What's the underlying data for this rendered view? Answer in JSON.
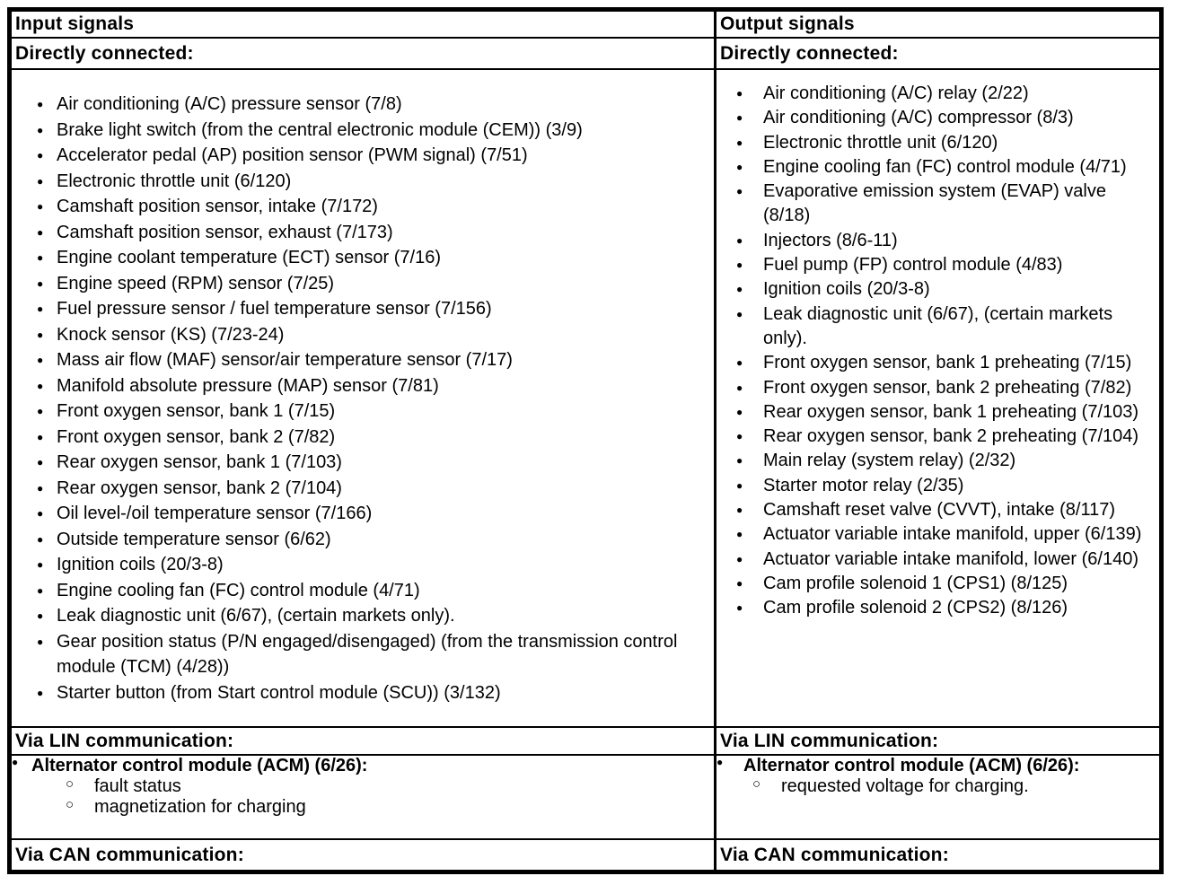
{
  "icons": {
    "bullet": "●",
    "circle": "○"
  },
  "columns": [
    {
      "header": "Input signals",
      "directly_connected": {
        "label": "Directly connected:",
        "items": [
          "Air conditioning (A/C) pressure sensor (7/8)",
          "Brake light switch (from the central electronic module (CEM)) (3/9)",
          "Accelerator pedal (AP) position sensor (PWM signal) (7/51)",
          "Electronic throttle unit (6/120)",
          "Camshaft position sensor, intake (7/172)",
          "Camshaft position sensor, exhaust (7/173)",
          "Engine coolant temperature (ECT) sensor (7/16)",
          "Engine speed (RPM) sensor (7/25)",
          "Fuel pressure sensor / fuel temperature sensor (7/156)",
          "Knock sensor (KS) (7/23-24)",
          "Mass air flow (MAF) sensor/air temperature sensor (7/17)",
          "Manifold absolute pressure (MAP) sensor (7/81)",
          "Front oxygen sensor, bank 1 (7/15)",
          "Front oxygen sensor, bank 2 (7/82)",
          "Rear oxygen sensor, bank 1 (7/103)",
          "Rear oxygen sensor, bank 2 (7/104)",
          "Oil level-/oil temperature sensor (7/166)",
          "Outside temperature sensor (6/62)",
          "Ignition coils (20/3-8)",
          "Engine cooling fan (FC) control module (4/71)",
          "Leak diagnostic unit (6/67), (certain markets only).",
          "Gear position status (P/N engaged/disengaged) (from the transmission control module (TCM) (4/28))",
          "Starter button (from Start control module (SCU)) (3/132)"
        ]
      },
      "via_lin": {
        "label": "Via LIN communication:",
        "module": "Alternator control module (ACM) (6/26):",
        "subitems": [
          "fault status",
          "magnetization for charging"
        ]
      },
      "via_can": {
        "label": "Via CAN communication:"
      }
    },
    {
      "header": "Output signals",
      "directly_connected": {
        "label": "Directly connected:",
        "items": [
          "Air conditioning (A/C) relay (2/22)",
          "Air conditioning (A/C) compressor (8/3)",
          "Electronic throttle unit (6/120)",
          "Engine cooling fan (FC) control module (4/71)",
          "Evaporative emission system (EVAP) valve (8/18)",
          "Injectors (8/6-11)",
          "Fuel pump (FP) control module (4/83)",
          "Ignition coils (20/3-8)",
          "Leak diagnostic unit (6/67), (certain markets only).",
          "Front oxygen sensor, bank 1 preheating (7/15)",
          "Front oxygen sensor, bank 2 preheating (7/82)",
          "Rear oxygen sensor, bank 1 preheating (7/103)",
          "Rear oxygen sensor, bank 2 preheating (7/104)",
          "Main relay (system relay) (2/32)",
          "Starter motor relay (2/35)",
          "Camshaft reset valve (CVVT), intake (8/117)",
          "Actuator variable intake manifold, upper (6/139)",
          "Actuator variable intake manifold, lower (6/140)",
          "Cam profile solenoid 1 (CPS1) (8/125)",
          "Cam profile solenoid 2 (CPS2) (8/126)"
        ]
      },
      "via_lin": {
        "label": "Via LIN communication:",
        "module": "Alternator control module (ACM) (6/26):",
        "subitems": [
          "requested voltage for charging."
        ]
      },
      "via_can": {
        "label": "Via CAN communication:"
      }
    }
  ]
}
